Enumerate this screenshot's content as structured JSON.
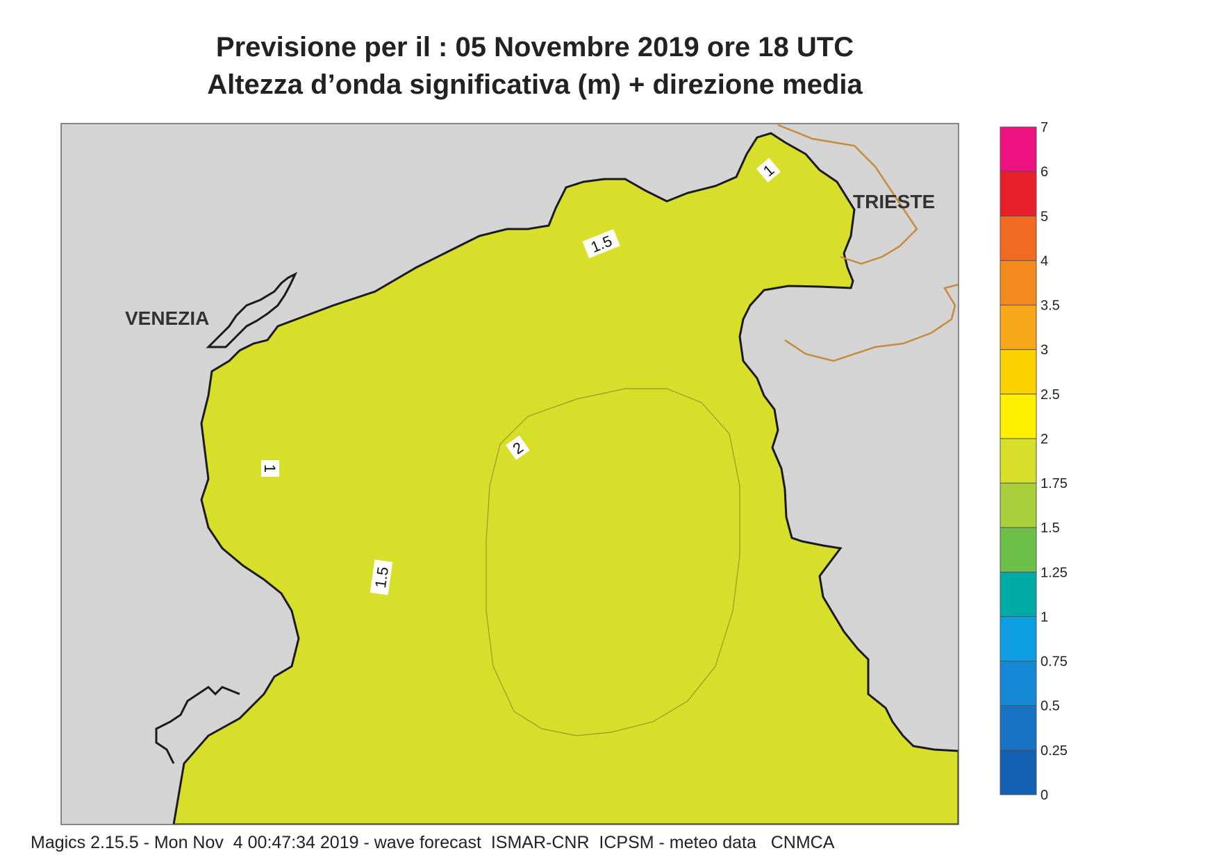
{
  "title": {
    "line1": "Previsione per il  :  05 Novembre  2019   ore 18 UTC",
    "line2": "Altezza d’onda significativa (m) + direzione media"
  },
  "places": {
    "venezia": "VENEZIA",
    "trieste": "TRIESTE"
  },
  "contour_labels": [
    "1",
    "1.5",
    "2",
    "1",
    "1.5"
  ],
  "colorbar": {
    "ticks": [
      "7",
      "6",
      "5",
      "4",
      "3.5",
      "3",
      "2.5",
      "2",
      "1.75",
      "1.5",
      "1.25",
      "1",
      "0.75",
      "0.5",
      "0.25",
      "0"
    ],
    "colors": [
      "#ee1180",
      "#e8202a",
      "#f06a22",
      "#f38a1e",
      "#f6a81a",
      "#fbd200",
      "#fff000",
      "#d8df2a",
      "#a9cf3b",
      "#6ebf4a",
      "#00aba6",
      "#0e9ee2",
      "#1688d6",
      "#1873c4",
      "#1460b2"
    ]
  },
  "colors": {
    "land": "#d4d4d4",
    "coast": "#1a1a1a",
    "border": "#c68a3a",
    "arrow": "#111111"
  },
  "footer": "Magics 2.15.5 - Mon Nov  4 00:47:34 2019 - wave forecast  ISMAR-CNR  ICPSM - meteo data   CNMCA"
}
